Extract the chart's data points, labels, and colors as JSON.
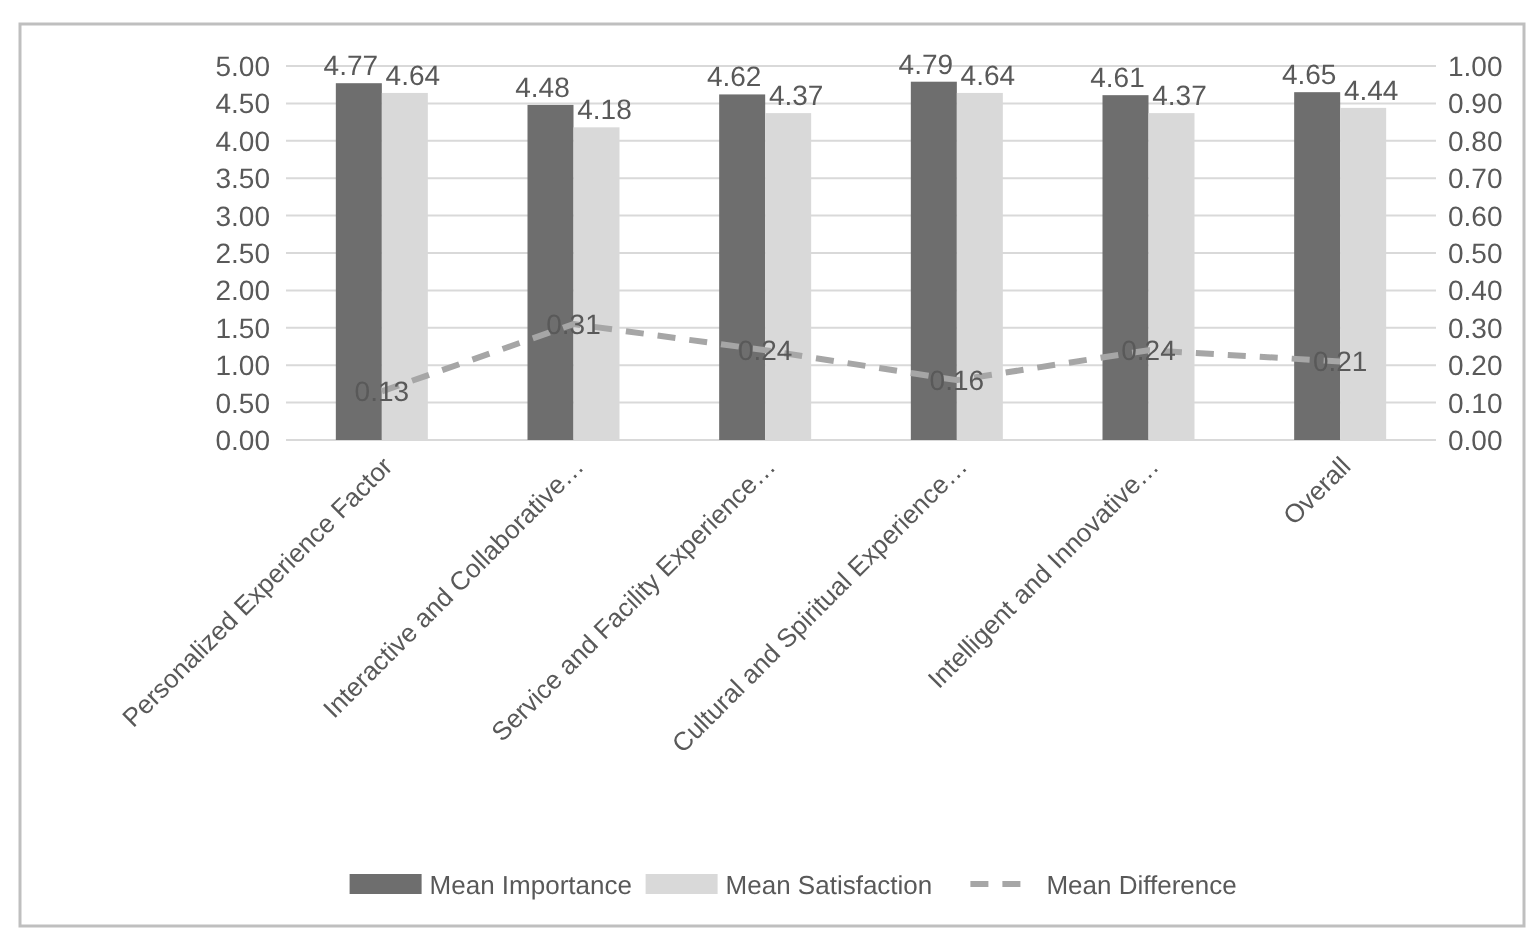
{
  "chart_data": {
    "type": "bar",
    "categories": [
      "Personalized Experience Factor",
      "Interactive and Collaborative…",
      "Service and Facility Experience…",
      "Cultural and Spiritual Experience…",
      "Intelligent and Innovative…",
      "Overall"
    ],
    "series": [
      {
        "name": "Mean Importance",
        "color": "#6e6e6e",
        "values": [
          4.77,
          4.48,
          4.62,
          4.79,
          4.61,
          4.65
        ]
      },
      {
        "name": "Mean Satisfaction",
        "color": "#d9d9d9",
        "values": [
          4.64,
          4.18,
          4.37,
          4.64,
          4.37,
          4.44
        ]
      },
      {
        "name": "Mean Difference",
        "type": "line",
        "axis": "y2",
        "color": "#a6a6a6",
        "line_style": "dashed",
        "values": [
          0.13,
          0.31,
          0.24,
          0.16,
          0.24,
          0.21
        ]
      }
    ],
    "ylim": [
      0,
      5
    ],
    "yticks": [
      {
        "value": 0,
        "label": "0.00"
      },
      {
        "value": 0.5,
        "label": "0.50"
      },
      {
        "value": 1,
        "label": "1.00"
      },
      {
        "value": 1.5,
        "label": "1.50"
      },
      {
        "value": 2,
        "label": "2.00"
      },
      {
        "value": 2.5,
        "label": "2.50"
      },
      {
        "value": 3,
        "label": "3.00"
      },
      {
        "value": 3.5,
        "label": "3.50"
      },
      {
        "value": 4,
        "label": "4.00"
      },
      {
        "value": 4.5,
        "label": "4.50"
      },
      {
        "value": 5,
        "label": "5.00"
      }
    ],
    "y2lim": [
      0,
      1
    ],
    "y2ticks": [
      {
        "value": 0,
        "label": "0.00"
      },
      {
        "value": 0.1,
        "label": "0.10"
      },
      {
        "value": 0.2,
        "label": "0.20"
      },
      {
        "value": 0.3,
        "label": "0.30"
      },
      {
        "value": 0.4,
        "label": "0.40"
      },
      {
        "value": 0.5,
        "label": "0.50"
      },
      {
        "value": 0.6,
        "label": "0.60"
      },
      {
        "value": 0.7,
        "label": "0.70"
      },
      {
        "value": 0.8,
        "label": "0.80"
      },
      {
        "value": 0.9,
        "label": "0.90"
      },
      {
        "value": 1,
        "label": "1.00"
      }
    ],
    "grid": "y",
    "legend": "bottom",
    "data_labels": true
  }
}
